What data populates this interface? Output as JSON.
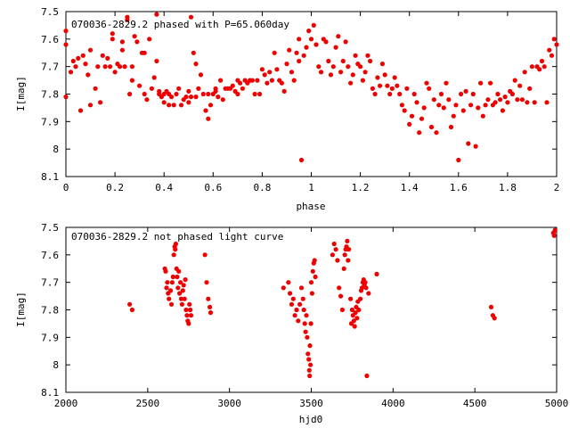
{
  "chart_data": [
    {
      "type": "scatter",
      "title": "070036-2829.2 phased with P=65.060day",
      "xlabel": "phase",
      "ylabel": "I[mag]",
      "xlim": [
        0,
        2
      ],
      "ylim": [
        8.1,
        7.5
      ],
      "y_inverted": true,
      "xticks": [
        "0",
        "0.2",
        "0.4",
        "0.6",
        "0.8",
        "1",
        "1.2",
        "1.4",
        "1.6",
        "1.8",
        "2"
      ],
      "yticks": [
        "7.5",
        "7.6",
        "7.7",
        "7.8",
        "7.9",
        "8",
        "8.1"
      ],
      "marker_color": "#ee0000",
      "grid": false,
      "legend": "none",
      "points": [
        [
          0.0,
          7.57
        ],
        [
          0.0,
          7.62
        ],
        [
          0.0,
          7.81
        ],
        [
          0.02,
          7.72
        ],
        [
          0.03,
          7.68
        ],
        [
          0.04,
          7.7
        ],
        [
          0.05,
          7.67
        ],
        [
          0.06,
          7.86
        ],
        [
          0.07,
          7.66
        ],
        [
          0.08,
          7.69
        ],
        [
          0.09,
          7.73
        ],
        [
          0.1,
          7.84
        ],
        [
          0.1,
          7.64
        ],
        [
          0.12,
          7.78
        ],
        [
          0.13,
          7.7
        ],
        [
          0.14,
          7.83
        ],
        [
          0.15,
          7.66
        ],
        [
          0.16,
          7.7
        ],
        [
          0.17,
          7.67
        ],
        [
          0.18,
          7.7
        ],
        [
          0.19,
          7.6
        ],
        [
          0.19,
          7.58
        ],
        [
          0.2,
          7.72
        ],
        [
          0.21,
          7.69
        ],
        [
          0.22,
          7.7
        ],
        [
          0.23,
          7.61
        ],
        [
          0.23,
          7.64
        ],
        [
          0.24,
          7.7
        ],
        [
          0.25,
          7.52
        ],
        [
          0.25,
          7.53
        ],
        [
          0.26,
          7.8
        ],
        [
          0.27,
          7.75
        ],
        [
          0.27,
          7.7
        ],
        [
          0.28,
          7.59
        ],
        [
          0.29,
          7.61
        ],
        [
          0.3,
          7.77
        ],
        [
          0.31,
          7.65
        ],
        [
          0.32,
          7.8
        ],
        [
          0.32,
          7.65
        ],
        [
          0.33,
          7.82
        ],
        [
          0.34,
          7.6
        ],
        [
          0.35,
          7.78
        ],
        [
          0.36,
          7.74
        ],
        [
          0.37,
          7.68
        ],
        [
          0.37,
          7.51
        ],
        [
          0.38,
          7.79
        ],
        [
          0.38,
          7.8
        ],
        [
          0.39,
          7.81
        ],
        [
          0.4,
          7.8
        ],
        [
          0.4,
          7.83
        ],
        [
          0.41,
          7.79
        ],
        [
          0.42,
          7.8
        ],
        [
          0.42,
          7.84
        ],
        [
          0.43,
          7.81
        ],
        [
          0.44,
          7.84
        ],
        [
          0.45,
          7.8
        ],
        [
          0.46,
          7.78
        ],
        [
          0.47,
          7.84
        ],
        [
          0.48,
          7.82
        ],
        [
          0.49,
          7.81
        ],
        [
          0.5,
          7.79
        ],
        [
          0.5,
          7.83
        ],
        [
          0.51,
          7.81
        ],
        [
          0.51,
          7.52
        ],
        [
          0.52,
          7.65
        ],
        [
          0.53,
          7.69
        ],
        [
          0.53,
          7.81
        ],
        [
          0.54,
          7.78
        ],
        [
          0.55,
          7.73
        ],
        [
          0.56,
          7.8
        ],
        [
          0.57,
          7.86
        ],
        [
          0.58,
          7.8
        ],
        [
          0.58,
          7.89
        ],
        [
          0.59,
          7.84
        ],
        [
          0.6,
          7.8
        ],
        [
          0.61,
          7.79
        ],
        [
          0.61,
          7.78
        ],
        [
          0.62,
          7.81
        ],
        [
          0.63,
          7.75
        ],
        [
          0.64,
          7.82
        ],
        [
          0.65,
          7.78
        ],
        [
          0.66,
          7.78
        ],
        [
          0.67,
          7.78
        ],
        [
          0.68,
          7.77
        ],
        [
          0.69,
          7.79
        ],
        [
          0.7,
          7.8
        ],
        [
          0.7,
          7.75
        ],
        [
          0.71,
          7.76
        ],
        [
          0.72,
          7.78
        ],
        [
          0.73,
          7.75
        ],
        [
          0.74,
          7.76
        ],
        [
          0.75,
          7.75
        ],
        [
          0.76,
          7.75
        ],
        [
          0.77,
          7.8
        ],
        [
          0.78,
          7.75
        ],
        [
          0.79,
          7.8
        ],
        [
          0.8,
          7.71
        ],
        [
          0.81,
          7.73
        ],
        [
          0.82,
          7.76
        ],
        [
          0.83,
          7.72
        ],
        [
          0.84,
          7.75
        ],
        [
          0.85,
          7.65
        ],
        [
          0.86,
          7.71
        ],
        [
          0.87,
          7.75
        ],
        [
          0.88,
          7.76
        ],
        [
          0.89,
          7.79
        ],
        [
          0.9,
          7.69
        ],
        [
          0.91,
          7.64
        ],
        [
          0.92,
          7.72
        ],
        [
          0.93,
          7.75
        ],
        [
          0.94,
          7.65
        ],
        [
          0.95,
          7.6
        ],
        [
          0.95,
          7.68
        ],
        [
          0.96,
          8.04
        ],
        [
          0.97,
          7.66
        ],
        [
          0.98,
          7.63
        ],
        [
          0.99,
          7.57
        ],
        [
          1.0,
          7.6
        ],
        [
          1.01,
          7.55
        ],
        [
          1.02,
          7.62
        ],
        [
          1.03,
          7.7
        ],
        [
          1.04,
          7.72
        ],
        [
          1.05,
          7.6
        ],
        [
          1.06,
          7.61
        ],
        [
          1.07,
          7.68
        ],
        [
          1.08,
          7.73
        ],
        [
          1.09,
          7.7
        ],
        [
          1.1,
          7.63
        ],
        [
          1.11,
          7.59
        ],
        [
          1.12,
          7.72
        ],
        [
          1.13,
          7.68
        ],
        [
          1.14,
          7.61
        ],
        [
          1.15,
          7.7
        ],
        [
          1.16,
          7.76
        ],
        [
          1.17,
          7.73
        ],
        [
          1.18,
          7.66
        ],
        [
          1.19,
          7.69
        ],
        [
          1.2,
          7.7
        ],
        [
          1.21,
          7.75
        ],
        [
          1.22,
          7.72
        ],
        [
          1.23,
          7.66
        ],
        [
          1.24,
          7.68
        ],
        [
          1.25,
          7.78
        ],
        [
          1.26,
          7.8
        ],
        [
          1.27,
          7.74
        ],
        [
          1.28,
          7.77
        ],
        [
          1.29,
          7.69
        ],
        [
          1.3,
          7.73
        ],
        [
          1.31,
          7.77
        ],
        [
          1.32,
          7.8
        ],
        [
          1.33,
          7.78
        ],
        [
          1.34,
          7.74
        ],
        [
          1.35,
          7.77
        ],
        [
          1.36,
          7.8
        ],
        [
          1.37,
          7.84
        ],
        [
          1.38,
          7.86
        ],
        [
          1.39,
          7.78
        ],
        [
          1.4,
          7.91
        ],
        [
          1.41,
          7.88
        ],
        [
          1.42,
          7.8
        ],
        [
          1.43,
          7.83
        ],
        [
          1.44,
          7.94
        ],
        [
          1.45,
          7.89
        ],
        [
          1.46,
          7.85
        ],
        [
          1.47,
          7.76
        ],
        [
          1.48,
          7.78
        ],
        [
          1.49,
          7.92
        ],
        [
          1.5,
          7.82
        ],
        [
          1.51,
          7.94
        ],
        [
          1.52,
          7.84
        ],
        [
          1.53,
          7.8
        ],
        [
          1.54,
          7.85
        ],
        [
          1.55,
          7.76
        ],
        [
          1.56,
          7.82
        ],
        [
          1.57,
          7.92
        ],
        [
          1.58,
          7.88
        ],
        [
          1.59,
          7.84
        ],
        [
          1.6,
          8.04
        ],
        [
          1.61,
          7.8
        ],
        [
          1.62,
          7.86
        ],
        [
          1.63,
          7.79
        ],
        [
          1.64,
          7.98
        ],
        [
          1.65,
          7.84
        ],
        [
          1.66,
          7.8
        ],
        [
          1.67,
          7.99
        ],
        [
          1.68,
          7.85
        ],
        [
          1.69,
          7.76
        ],
        [
          1.7,
          7.88
        ],
        [
          1.71,
          7.84
        ],
        [
          1.72,
          7.82
        ],
        [
          1.73,
          7.76
        ],
        [
          1.74,
          7.84
        ],
        [
          1.75,
          7.83
        ],
        [
          1.76,
          7.8
        ],
        [
          1.77,
          7.82
        ],
        [
          1.78,
          7.86
        ],
        [
          1.79,
          7.81
        ],
        [
          1.8,
          7.83
        ],
        [
          1.81,
          7.79
        ],
        [
          1.82,
          7.8
        ],
        [
          1.83,
          7.75
        ],
        [
          1.84,
          7.82
        ],
        [
          1.85,
          7.77
        ],
        [
          1.86,
          7.82
        ],
        [
          1.87,
          7.72
        ],
        [
          1.88,
          7.83
        ],
        [
          1.89,
          7.78
        ],
        [
          1.9,
          7.7
        ],
        [
          1.91,
          7.83
        ],
        [
          1.92,
          7.7
        ],
        [
          1.93,
          7.71
        ],
        [
          1.94,
          7.68
        ],
        [
          1.95,
          7.7
        ],
        [
          1.96,
          7.83
        ],
        [
          1.97,
          7.64
        ],
        [
          1.98,
          7.66
        ],
        [
          1.99,
          7.6
        ],
        [
          2.0,
          7.62
        ]
      ]
    },
    {
      "type": "scatter",
      "title": "070036-2829.2 not phased light curve",
      "xlabel": "hjd0",
      "ylabel": "I[mag]",
      "xlim": [
        2000,
        5000
      ],
      "ylim": [
        8.1,
        7.5
      ],
      "y_inverted": true,
      "xticks": [
        "2000",
        "2500",
        "3000",
        "3500",
        "4000",
        "4500",
        "5000"
      ],
      "yticks": [
        "7.5",
        "7.6",
        "7.7",
        "7.8",
        "7.9",
        "8",
        "8.1"
      ],
      "marker_color": "#ee0000",
      "grid": false,
      "legend": "none",
      "points": [
        [
          2390,
          7.78
        ],
        [
          2405,
          7.8
        ],
        [
          2605,
          7.65
        ],
        [
          2610,
          7.66
        ],
        [
          2615,
          7.72
        ],
        [
          2620,
          7.7
        ],
        [
          2625,
          7.74
        ],
        [
          2630,
          7.76
        ],
        [
          2640,
          7.73
        ],
        [
          2645,
          7.78
        ],
        [
          2650,
          7.7
        ],
        [
          2655,
          7.68
        ],
        [
          2660,
          7.6
        ],
        [
          2665,
          7.57
        ],
        [
          2668,
          7.58
        ],
        [
          2672,
          7.56
        ],
        [
          2676,
          7.65
        ],
        [
          2680,
          7.68
        ],
        [
          2685,
          7.72
        ],
        [
          2690,
          7.66
        ],
        [
          2695,
          7.74
        ],
        [
          2700,
          7.7
        ],
        [
          2705,
          7.76
        ],
        [
          2710,
          7.78
        ],
        [
          2715,
          7.73
        ],
        [
          2720,
          7.71
        ],
        [
          2725,
          7.76
        ],
        [
          2730,
          7.69
        ],
        [
          2735,
          7.8
        ],
        [
          2740,
          7.82
        ],
        [
          2745,
          7.84
        ],
        [
          2750,
          7.85
        ],
        [
          2755,
          7.78
        ],
        [
          2760,
          7.8
        ],
        [
          2765,
          7.82
        ],
        [
          2850,
          7.6
        ],
        [
          2860,
          7.7
        ],
        [
          2870,
          7.76
        ],
        [
          2880,
          7.79
        ],
        [
          2885,
          7.81
        ],
        [
          3330,
          7.72
        ],
        [
          3360,
          7.7
        ],
        [
          3370,
          7.74
        ],
        [
          3380,
          7.78
        ],
        [
          3390,
          7.76
        ],
        [
          3400,
          7.82
        ],
        [
          3410,
          7.8
        ],
        [
          3420,
          7.84
        ],
        [
          3430,
          7.78
        ],
        [
          3440,
          7.72
        ],
        [
          3450,
          7.76
        ],
        [
          3455,
          7.8
        ],
        [
          3460,
          7.85
        ],
        [
          3465,
          7.88
        ],
        [
          3470,
          7.82
        ],
        [
          3475,
          7.9
        ],
        [
          3480,
          7.96
        ],
        [
          3485,
          7.98
        ],
        [
          3488,
          8.02
        ],
        [
          3490,
          8.04
        ],
        [
          3492,
          7.93
        ],
        [
          3495,
          8.0
        ],
        [
          3498,
          7.85
        ],
        [
          3500,
          7.7
        ],
        [
          3505,
          7.74
        ],
        [
          3510,
          7.66
        ],
        [
          3515,
          7.63
        ],
        [
          3520,
          7.62
        ],
        [
          3525,
          7.68
        ],
        [
          3630,
          7.6
        ],
        [
          3640,
          7.56
        ],
        [
          3650,
          7.58
        ],
        [
          3660,
          7.62
        ],
        [
          3670,
          7.72
        ],
        [
          3680,
          7.75
        ],
        [
          3690,
          7.8
        ],
        [
          3700,
          7.65
        ],
        [
          3705,
          7.6
        ],
        [
          3710,
          7.58
        ],
        [
          3715,
          7.57
        ],
        [
          3720,
          7.55
        ],
        [
          3725,
          7.62
        ],
        [
          3730,
          7.58
        ],
        [
          3740,
          7.76
        ],
        [
          3745,
          7.85
        ],
        [
          3750,
          7.8
        ],
        [
          3755,
          7.82
        ],
        [
          3760,
          7.84
        ],
        [
          3765,
          7.86
        ],
        [
          3770,
          7.81
        ],
        [
          3775,
          7.79
        ],
        [
          3780,
          7.83
        ],
        [
          3785,
          7.77
        ],
        [
          3790,
          7.8
        ],
        [
          3800,
          7.76
        ],
        [
          3805,
          7.73
        ],
        [
          3810,
          7.72
        ],
        [
          3815,
          7.7
        ],
        [
          3820,
          7.69
        ],
        [
          3825,
          7.71
        ],
        [
          3830,
          7.7
        ],
        [
          3835,
          7.72
        ],
        [
          3840,
          8.04
        ],
        [
          3850,
          7.74
        ],
        [
          3900,
          7.67
        ],
        [
          4600,
          7.79
        ],
        [
          4610,
          7.82
        ],
        [
          4620,
          7.83
        ],
        [
          4980,
          7.52
        ],
        [
          4985,
          7.53
        ],
        [
          4990,
          7.51
        ]
      ]
    }
  ]
}
